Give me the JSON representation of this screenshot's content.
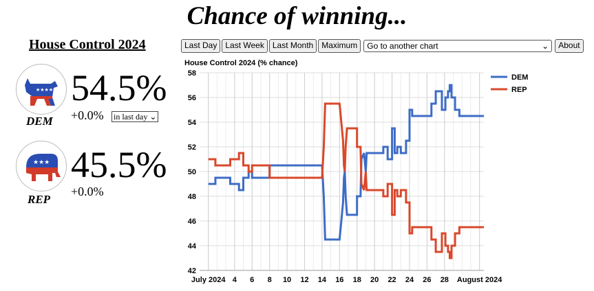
{
  "page": {
    "title": "Chance of winning...",
    "subtitle": "House Control 2024"
  },
  "toolbar": {
    "last_day": "Last Day",
    "last_week": "Last Week",
    "last_month": "Last Month",
    "maximum": "Maximum",
    "select_chart": "Go to another chart",
    "about": "About"
  },
  "dem": {
    "label": "DEM",
    "pct": "54.5%",
    "change": "+0.0%",
    "period": "in last day",
    "color": "#3d6cc6"
  },
  "rep": {
    "label": "REP",
    "pct": "45.5%",
    "change": "+0.0%",
    "color": "#d9482b"
  },
  "chart_data": {
    "type": "line",
    "title": "House Control 2024 (% chance)",
    "x_tick_labels": [
      "July 2024",
      "4",
      "6",
      "8",
      "10",
      "12",
      "14",
      "16",
      "18",
      "20",
      "22",
      "24",
      "26",
      "28",
      "August 2024"
    ],
    "ylim": [
      42,
      58
    ],
    "y_ticks": [
      42,
      44,
      46,
      48,
      50,
      52,
      54,
      56,
      58
    ],
    "grid": true,
    "legend": "right",
    "series": [
      {
        "name": "DEM",
        "color": "#3d6cc6",
        "points": [
          [
            1.0,
            49.0
          ],
          [
            1.8,
            49.0
          ],
          [
            1.8,
            49.5
          ],
          [
            3.5,
            49.5
          ],
          [
            3.5,
            49.0
          ],
          [
            4.5,
            49.0
          ],
          [
            4.5,
            48.5
          ],
          [
            5.0,
            48.5
          ],
          [
            5.0,
            49.5
          ],
          [
            5.6,
            49.5
          ],
          [
            5.6,
            50.0
          ],
          [
            6.0,
            50.0
          ],
          [
            6.0,
            49.5
          ],
          [
            8.0,
            49.5
          ],
          [
            8.0,
            50.5
          ],
          [
            14.0,
            50.5
          ],
          [
            14.2,
            48.0
          ],
          [
            14.35,
            44.5
          ],
          [
            16.0,
            44.5
          ],
          [
            16.2,
            46.0
          ],
          [
            16.4,
            47.5
          ],
          [
            16.5,
            49.5
          ],
          [
            16.6,
            50.0
          ],
          [
            16.7,
            48.0
          ],
          [
            16.85,
            46.5
          ],
          [
            18.0,
            46.5
          ],
          [
            18.0,
            48.0
          ],
          [
            18.4,
            48.0
          ],
          [
            18.5,
            51.0
          ],
          [
            18.8,
            51.5
          ],
          [
            19.0,
            50.0
          ],
          [
            19.1,
            51.5
          ],
          [
            21.0,
            51.5
          ],
          [
            21.0,
            52.0
          ],
          [
            21.5,
            52.0
          ],
          [
            21.5,
            51.0
          ],
          [
            22.0,
            51.0
          ],
          [
            22.0,
            53.5
          ],
          [
            22.3,
            53.5
          ],
          [
            22.3,
            51.5
          ],
          [
            22.6,
            51.5
          ],
          [
            22.6,
            52.0
          ],
          [
            23.0,
            52.0
          ],
          [
            23.0,
            51.5
          ],
          [
            23.6,
            51.5
          ],
          [
            23.6,
            52.5
          ],
          [
            24.0,
            52.5
          ],
          [
            24.0,
            55.0
          ],
          [
            24.3,
            55.0
          ],
          [
            24.3,
            54.5
          ],
          [
            26.5,
            54.5
          ],
          [
            26.5,
            55.5
          ],
          [
            27.0,
            55.5
          ],
          [
            27.0,
            56.5
          ],
          [
            27.7,
            56.5
          ],
          [
            27.7,
            55.0
          ],
          [
            28.1,
            55.0
          ],
          [
            28.1,
            56.0
          ],
          [
            28.4,
            56.0
          ],
          [
            28.4,
            56.5
          ],
          [
            28.6,
            56.5
          ],
          [
            28.6,
            57.0
          ],
          [
            28.8,
            57.0
          ],
          [
            28.8,
            56.0
          ],
          [
            29.2,
            56.0
          ],
          [
            29.2,
            55.0
          ],
          [
            29.7,
            55.0
          ],
          [
            29.7,
            54.5
          ],
          [
            32.5,
            54.5
          ]
        ]
      },
      {
        "name": "REP",
        "color": "#d9482b",
        "points": [
          [
            1.0,
            51.0
          ],
          [
            1.8,
            51.0
          ],
          [
            1.8,
            50.5
          ],
          [
            3.5,
            50.5
          ],
          [
            3.5,
            51.0
          ],
          [
            4.5,
            51.0
          ],
          [
            4.5,
            51.5
          ],
          [
            5.0,
            51.5
          ],
          [
            5.0,
            50.5
          ],
          [
            5.6,
            50.5
          ],
          [
            5.6,
            50.0
          ],
          [
            6.0,
            50.0
          ],
          [
            6.0,
            50.5
          ],
          [
            8.0,
            50.5
          ],
          [
            8.0,
            49.5
          ],
          [
            14.0,
            49.5
          ],
          [
            14.2,
            52.0
          ],
          [
            14.35,
            55.5
          ],
          [
            16.0,
            55.5
          ],
          [
            16.2,
            54.0
          ],
          [
            16.4,
            52.5
          ],
          [
            16.5,
            50.5
          ],
          [
            16.6,
            50.0
          ],
          [
            16.7,
            52.0
          ],
          [
            16.85,
            53.5
          ],
          [
            18.0,
            53.5
          ],
          [
            18.0,
            52.0
          ],
          [
            18.4,
            52.0
          ],
          [
            18.5,
            49.0
          ],
          [
            18.8,
            48.5
          ],
          [
            19.0,
            50.0
          ],
          [
            19.1,
            48.5
          ],
          [
            21.0,
            48.5
          ],
          [
            21.0,
            48.0
          ],
          [
            21.5,
            48.0
          ],
          [
            21.5,
            49.0
          ],
          [
            22.0,
            49.0
          ],
          [
            22.0,
            46.5
          ],
          [
            22.3,
            46.5
          ],
          [
            22.3,
            48.5
          ],
          [
            22.6,
            48.5
          ],
          [
            22.6,
            48.0
          ],
          [
            23.0,
            48.0
          ],
          [
            23.0,
            48.5
          ],
          [
            23.6,
            48.5
          ],
          [
            23.6,
            47.5
          ],
          [
            24.0,
            47.5
          ],
          [
            24.0,
            45.0
          ],
          [
            24.3,
            45.0
          ],
          [
            24.3,
            45.5
          ],
          [
            26.5,
            45.5
          ],
          [
            26.5,
            44.5
          ],
          [
            27.0,
            44.5
          ],
          [
            27.0,
            43.5
          ],
          [
            27.7,
            43.5
          ],
          [
            27.7,
            45.0
          ],
          [
            28.1,
            45.0
          ],
          [
            28.1,
            44.0
          ],
          [
            28.4,
            44.0
          ],
          [
            28.4,
            43.5
          ],
          [
            28.6,
            43.5
          ],
          [
            28.6,
            43.0
          ],
          [
            28.8,
            43.0
          ],
          [
            28.8,
            44.0
          ],
          [
            29.2,
            44.0
          ],
          [
            29.2,
            45.0
          ],
          [
            29.7,
            45.0
          ],
          [
            29.7,
            45.5
          ],
          [
            32.5,
            45.5
          ]
        ]
      }
    ]
  }
}
